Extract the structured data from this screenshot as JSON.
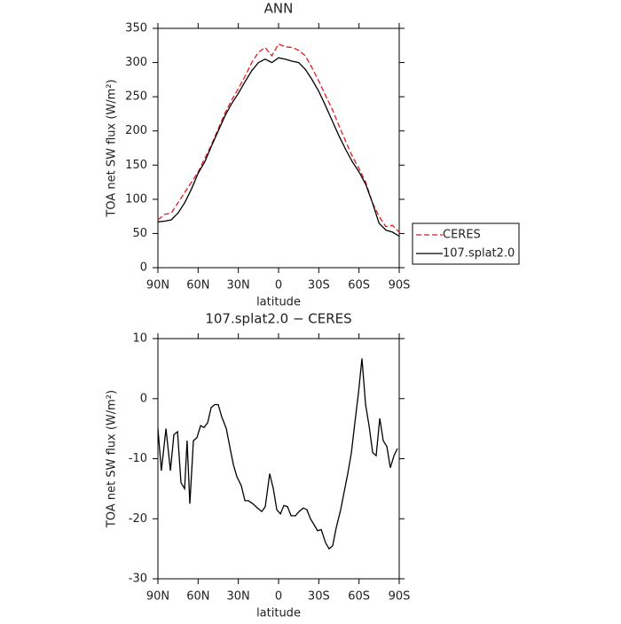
{
  "chart_data": [
    {
      "type": "line",
      "title": "ANN",
      "xlabel": "latitude",
      "ylabel": "TOA net SW flux (W/m²)",
      "xlim": [
        90,
        -90
      ],
      "xticks": [
        {
          "value": 90,
          "label": "90N"
        },
        {
          "value": 60,
          "label": "60N"
        },
        {
          "value": 30,
          "label": "30N"
        },
        0,
        {
          "value": -30,
          "label": "30S"
        },
        {
          "value": -60,
          "label": "60S"
        },
        {
          "value": -90,
          "label": "90S"
        }
      ],
      "ylim": [
        0,
        350
      ],
      "yticks": [
        0,
        50,
        100,
        150,
        200,
        250,
        300,
        350
      ],
      "legend": "right",
      "x": [
        90,
        85,
        80,
        75,
        70,
        65,
        60,
        55,
        50,
        45,
        40,
        35,
        30,
        25,
        20,
        15,
        10,
        5,
        0,
        -5,
        -10,
        -15,
        -20,
        -25,
        -30,
        -35,
        -40,
        -45,
        -50,
        -55,
        -60,
        -65,
        -70,
        -75,
        -80,
        -85,
        -90
      ],
      "series": [
        {
          "name": "CERES",
          "color": "#e8191c",
          "line_style": "dashed",
          "values": [
            70,
            78,
            80,
            95,
            110,
            125,
            140,
            160,
            180,
            203,
            226,
            245,
            262,
            280,
            300,
            315,
            322,
            310,
            327,
            323,
            322,
            318,
            310,
            292,
            273,
            252,
            232,
            208,
            185,
            163,
            145,
            125,
            95,
            75,
            60,
            62,
            52
          ]
        },
        {
          "name": "107.splat2.0",
          "color": "#000000",
          "line_style": "solid",
          "values": [
            67,
            68,
            70,
            80,
            95,
            115,
            138,
            155,
            178,
            200,
            222,
            240,
            255,
            272,
            288,
            300,
            305,
            300,
            307,
            305,
            302,
            300,
            290,
            275,
            258,
            237,
            215,
            193,
            173,
            155,
            140,
            122,
            95,
            65,
            55,
            52,
            46
          ]
        }
      ]
    },
    {
      "type": "line",
      "title": "107.splat2.0 − CERES",
      "xlabel": "latitude",
      "ylabel": "TOA net SW flux (W/m²)",
      "xlim": [
        90,
        -90
      ],
      "xticks": [
        {
          "value": 90,
          "label": "90N"
        },
        {
          "value": 60,
          "label": "60N"
        },
        {
          "value": 30,
          "label": "30N"
        },
        0,
        {
          "value": -30,
          "label": "30S"
        },
        {
          "value": -60,
          "label": "60S"
        },
        {
          "value": -90,
          "label": "90S"
        }
      ],
      "ylim": [
        -30,
        10
      ],
      "yticks": [
        -30,
        -20,
        -10,
        0,
        10
      ],
      "x": [
        90,
        87.4,
        84,
        80.7,
        78.1,
        75.4,
        72.8,
        70.1,
        68.2,
        66.2,
        63.5,
        60.9,
        58.2,
        55.6,
        52.9,
        50.3,
        47.6,
        45,
        42.4,
        39,
        36.4,
        33.7,
        31.1,
        27.8,
        25.1,
        22.5,
        19.2,
        15.8,
        12.5,
        9.9,
        6.6,
        3.9,
        1.3,
        -1.4,
        -4,
        -6.7,
        -9.3,
        -12.6,
        -15.3,
        -18.5,
        -21.2,
        -23.8,
        -26.5,
        -29.1,
        -31.8,
        -35.1,
        -37.7,
        -40.4,
        -43,
        -46.3,
        -49,
        -51.6,
        -54.3,
        -56.9,
        -59.6,
        -62.2,
        -64.9,
        -67.5,
        -70.2,
        -72.8,
        -75.5,
        -78.1,
        -80.8,
        -83.4,
        -86.1,
        -88.7
      ],
      "series": [
        {
          "color": "#000000",
          "line_style": "solid",
          "values": [
            -5,
            -12,
            -5,
            -12,
            -6,
            -5.5,
            -14,
            -15,
            -7,
            -17.5,
            -7,
            -6.5,
            -4.5,
            -4.8,
            -4,
            -1.5,
            -1,
            -1,
            -3,
            -5,
            -8,
            -11,
            -13,
            -14.5,
            -17,
            -17,
            -17.5,
            -18.2,
            -18.8,
            -18,
            -12.5,
            -15,
            -18.5,
            -19.2,
            -17.8,
            -18,
            -19.5,
            -19.5,
            -18.8,
            -18.2,
            -18.5,
            -20,
            -21,
            -22,
            -21.8,
            -24,
            -25,
            -24.5,
            -21.5,
            -18.5,
            -15.5,
            -12.5,
            -9,
            -4,
            1,
            6.7,
            -1,
            -4.5,
            -9,
            -9.5,
            -3.3,
            -7,
            -8,
            -11.5,
            -9.5,
            -8.3
          ]
        }
      ]
    }
  ]
}
